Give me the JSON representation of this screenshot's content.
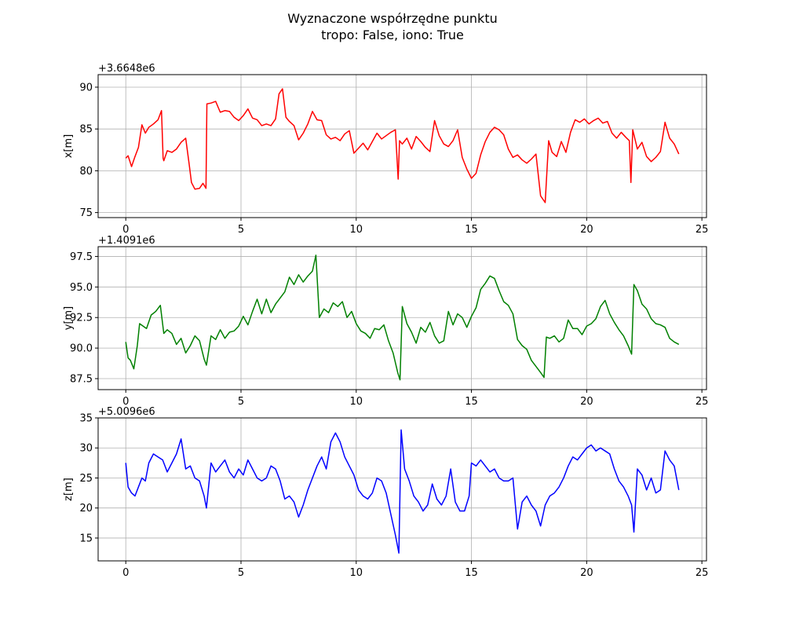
{
  "title": [
    "Wyznaczone współrzędne punktu",
    "tropo: False, iono: True"
  ],
  "chart_data": [
    {
      "type": "line",
      "offset_label": "+3.6648e6",
      "ylabel": "x[m]",
      "xlabel": "",
      "xlim": [
        -1.2,
        25.2
      ],
      "ylim": [
        74.4,
        91.5
      ],
      "xticks": [
        0,
        5,
        10,
        15,
        20,
        25
      ],
      "yticks": [
        75,
        80,
        85,
        90
      ],
      "grid": true,
      "series": [
        {
          "color": "#ff0000",
          "x": [
            0,
            0.1,
            0.25,
            0.4,
            0.55,
            0.7,
            0.85,
            1.0,
            1.2,
            1.4,
            1.55,
            1.62,
            1.65,
            1.8,
            2.0,
            2.2,
            2.4,
            2.6,
            2.75,
            2.85,
            3.0,
            3.2,
            3.35,
            3.48,
            3.52,
            3.7,
            3.9,
            4.1,
            4.3,
            4.5,
            4.7,
            4.9,
            5.1,
            5.3,
            5.5,
            5.7,
            5.9,
            6.1,
            6.3,
            6.5,
            6.65,
            6.8,
            6.95,
            7.1,
            7.3,
            7.5,
            7.7,
            7.9,
            8.1,
            8.3,
            8.5,
            8.7,
            8.9,
            9.1,
            9.3,
            9.5,
            9.7,
            9.9,
            10.1,
            10.3,
            10.5,
            10.7,
            10.9,
            11.1,
            11.3,
            11.5,
            11.7,
            11.82,
            11.88,
            12.0,
            12.2,
            12.4,
            12.6,
            12.8,
            13.0,
            13.2,
            13.4,
            13.6,
            13.8,
            14.0,
            14.2,
            14.4,
            14.6,
            14.8,
            15.0,
            15.2,
            15.4,
            15.6,
            15.8,
            16.0,
            16.2,
            16.4,
            16.6,
            16.8,
            17.0,
            17.2,
            17.4,
            17.6,
            17.8,
            18.0,
            18.2,
            18.35,
            18.5,
            18.7,
            18.9,
            19.1,
            19.3,
            19.5,
            19.7,
            19.9,
            20.1,
            20.3,
            20.5,
            20.7,
            20.9,
            21.1,
            21.3,
            21.5,
            21.7,
            21.85,
            21.92,
            22.0,
            22.2,
            22.4,
            22.6,
            22.8,
            23.0,
            23.2,
            23.4,
            23.6,
            23.8,
            24.0
          ],
          "y": [
            81.5,
            81.8,
            80.5,
            81.7,
            82.8,
            85.5,
            84.5,
            85.2,
            85.6,
            86.1,
            87.2,
            81.5,
            81.2,
            82.4,
            82.2,
            82.6,
            83.4,
            83.9,
            80.8,
            78.6,
            77.8,
            77.9,
            78.5,
            77.9,
            88.0,
            88.1,
            88.3,
            87.0,
            87.2,
            87.1,
            86.4,
            86.0,
            86.6,
            87.4,
            86.3,
            86.1,
            85.4,
            85.6,
            85.4,
            86.2,
            89.2,
            89.8,
            86.4,
            85.9,
            85.4,
            83.7,
            84.5,
            85.6,
            87.1,
            86.1,
            86.0,
            84.3,
            83.8,
            84.0,
            83.6,
            84.4,
            84.8,
            82.1,
            82.7,
            83.3,
            82.5,
            83.5,
            84.5,
            83.8,
            84.2,
            84.6,
            84.9,
            79.0,
            83.6,
            83.2,
            83.9,
            82.6,
            84.1,
            83.5,
            82.8,
            82.3,
            86.0,
            84.2,
            83.2,
            82.9,
            83.6,
            84.9,
            81.6,
            80.2,
            79.1,
            79.7,
            81.9,
            83.5,
            84.6,
            85.2,
            84.9,
            84.3,
            82.6,
            81.6,
            81.9,
            81.3,
            80.9,
            81.4,
            82.0,
            77.0,
            76.2,
            83.6,
            82.2,
            81.7,
            83.5,
            82.2,
            84.6,
            86.1,
            85.8,
            86.2,
            85.6,
            86.0,
            86.3,
            85.7,
            85.9,
            84.5,
            83.9,
            84.6,
            84.0,
            83.6,
            78.6,
            84.9,
            82.6,
            83.4,
            81.7,
            81.1,
            81.6,
            82.3,
            85.8,
            83.9,
            83.2,
            82.0
          ]
        }
      ]
    },
    {
      "type": "line",
      "offset_label": "+1.4091e6",
      "ylabel": "y[m]",
      "xlabel": "",
      "xlim": [
        -1.2,
        25.2
      ],
      "ylim": [
        86.6,
        98.3
      ],
      "xticks": [
        0,
        5,
        10,
        15,
        20,
        25
      ],
      "yticks": [
        87.5,
        90.0,
        92.5,
        95.0,
        97.5
      ],
      "grid": true,
      "series": [
        {
          "color": "#008000",
          "x": [
            0,
            0.1,
            0.2,
            0.35,
            0.5,
            0.6,
            0.75,
            0.9,
            1.1,
            1.3,
            1.5,
            1.65,
            1.8,
            2.0,
            2.2,
            2.4,
            2.6,
            2.8,
            3.0,
            3.2,
            3.4,
            3.5,
            3.7,
            3.9,
            4.1,
            4.3,
            4.5,
            4.7,
            4.9,
            5.1,
            5.3,
            5.5,
            5.7,
            5.9,
            6.1,
            6.3,
            6.5,
            6.7,
            6.9,
            7.1,
            7.3,
            7.5,
            7.7,
            7.9,
            8.1,
            8.25,
            8.4,
            8.6,
            8.8,
            9.0,
            9.2,
            9.4,
            9.6,
            9.8,
            10.0,
            10.2,
            10.4,
            10.6,
            10.8,
            11.0,
            11.2,
            11.4,
            11.6,
            11.8,
            11.9,
            12.0,
            12.2,
            12.4,
            12.6,
            12.8,
            13.0,
            13.2,
            13.4,
            13.6,
            13.8,
            14.0,
            14.2,
            14.4,
            14.6,
            14.8,
            15.0,
            15.2,
            15.4,
            15.6,
            15.8,
            16.0,
            16.2,
            16.4,
            16.6,
            16.8,
            17.0,
            17.2,
            17.4,
            17.6,
            17.8,
            18.0,
            18.15,
            18.25,
            18.4,
            18.6,
            18.8,
            19.0,
            19.2,
            19.4,
            19.6,
            19.8,
            20.0,
            20.2,
            20.4,
            20.6,
            20.8,
            21.0,
            21.2,
            21.4,
            21.6,
            21.8,
            21.95,
            22.05,
            22.2,
            22.4,
            22.6,
            22.8,
            23.0,
            23.2,
            23.4,
            23.6,
            23.8,
            24.0
          ],
          "y": [
            90.5,
            89.2,
            89.0,
            88.3,
            90.2,
            92.0,
            91.8,
            91.6,
            92.7,
            93.0,
            93.5,
            91.2,
            91.5,
            91.2,
            90.3,
            90.8,
            89.6,
            90.2,
            91.0,
            90.6,
            89.1,
            88.6,
            91.0,
            90.7,
            91.5,
            90.8,
            91.3,
            91.4,
            91.8,
            92.6,
            91.9,
            93.0,
            94.0,
            92.8,
            94.0,
            92.9,
            93.6,
            94.1,
            94.6,
            95.8,
            95.2,
            96.0,
            95.4,
            95.9,
            96.3,
            97.6,
            92.5,
            93.2,
            92.9,
            93.7,
            93.4,
            93.8,
            92.5,
            93.0,
            92.0,
            91.4,
            91.2,
            90.8,
            91.6,
            91.5,
            91.9,
            90.6,
            89.6,
            88.0,
            87.4,
            93.4,
            92.0,
            91.3,
            90.4,
            91.7,
            91.3,
            92.1,
            91.0,
            90.4,
            90.6,
            93.0,
            91.9,
            92.8,
            92.5,
            91.7,
            92.6,
            93.3,
            94.8,
            95.3,
            95.9,
            95.7,
            94.7,
            93.8,
            93.5,
            92.8,
            90.7,
            90.2,
            89.9,
            89.0,
            88.5,
            88.0,
            87.6,
            90.9,
            90.8,
            91.0,
            90.5,
            90.8,
            92.3,
            91.6,
            91.6,
            91.1,
            91.8,
            92.0,
            92.4,
            93.4,
            93.9,
            92.8,
            92.1,
            91.5,
            91.0,
            90.2,
            89.5,
            95.2,
            94.7,
            93.6,
            93.2,
            92.4,
            92.0,
            91.9,
            91.7,
            90.8,
            90.5,
            90.3
          ]
        }
      ]
    },
    {
      "type": "line",
      "offset_label": "+5.0096e6",
      "ylabel": "z[m]",
      "xlabel": "",
      "xlim": [
        -1.2,
        25.2
      ],
      "ylim": [
        11.2,
        35.0
      ],
      "xticks": [
        0,
        5,
        10,
        15,
        20,
        25
      ],
      "yticks": [
        15,
        20,
        25,
        30,
        35
      ],
      "grid": true,
      "series": [
        {
          "color": "#0000ff",
          "x": [
            0,
            0.1,
            0.25,
            0.4,
            0.55,
            0.7,
            0.85,
            1.0,
            1.2,
            1.4,
            1.6,
            1.8,
            2.0,
            2.2,
            2.4,
            2.5,
            2.6,
            2.8,
            3.0,
            3.2,
            3.4,
            3.5,
            3.7,
            3.9,
            4.1,
            4.3,
            4.5,
            4.7,
            4.9,
            5.1,
            5.3,
            5.5,
            5.7,
            5.9,
            6.1,
            6.3,
            6.5,
            6.7,
            6.9,
            7.1,
            7.3,
            7.5,
            7.7,
            7.9,
            8.1,
            8.3,
            8.5,
            8.7,
            8.9,
            9.1,
            9.3,
            9.5,
            9.7,
            9.9,
            10.1,
            10.3,
            10.5,
            10.7,
            10.9,
            11.1,
            11.3,
            11.5,
            11.7,
            11.85,
            11.95,
            12.1,
            12.3,
            12.5,
            12.7,
            12.9,
            13.1,
            13.3,
            13.5,
            13.7,
            13.9,
            14.1,
            14.3,
            14.5,
            14.7,
            14.9,
            15.0,
            15.2,
            15.4,
            15.6,
            15.8,
            16.0,
            16.2,
            16.4,
            16.6,
            16.8,
            17.0,
            17.2,
            17.4,
            17.6,
            17.8,
            18.0,
            18.2,
            18.4,
            18.6,
            18.8,
            19.0,
            19.2,
            19.4,
            19.6,
            19.8,
            20.0,
            20.2,
            20.4,
            20.6,
            20.8,
            21.0,
            21.2,
            21.4,
            21.6,
            21.8,
            21.95,
            22.05,
            22.2,
            22.4,
            22.6,
            22.8,
            23.0,
            23.2,
            23.4,
            23.6,
            23.8,
            24.0
          ],
          "y": [
            27.5,
            23.5,
            22.5,
            22.0,
            23.5,
            25.0,
            24.5,
            27.5,
            29.0,
            28.5,
            28.0,
            26.0,
            27.5,
            29.0,
            31.5,
            29.0,
            26.5,
            27.0,
            25.0,
            24.5,
            22.0,
            20.0,
            27.5,
            26.0,
            27.0,
            28.0,
            26.0,
            25.0,
            26.5,
            25.5,
            28.0,
            26.5,
            25.0,
            24.5,
            25.0,
            27.0,
            26.5,
            24.5,
            21.5,
            22.0,
            21.0,
            18.5,
            20.5,
            23.0,
            25.0,
            27.0,
            28.5,
            26.5,
            31.0,
            32.5,
            31.0,
            28.5,
            27.0,
            25.5,
            23.0,
            22.0,
            21.5,
            22.5,
            25.0,
            24.5,
            22.5,
            19.0,
            15.5,
            12.5,
            33.0,
            26.5,
            24.5,
            22.0,
            21.0,
            19.5,
            20.5,
            24.0,
            21.5,
            20.5,
            22.0,
            26.5,
            21.0,
            19.5,
            19.5,
            22.0,
            27.5,
            27.0,
            28.0,
            27.0,
            26.0,
            26.5,
            25.0,
            24.5,
            24.5,
            25.0,
            16.5,
            21.0,
            22.0,
            20.5,
            19.5,
            17.0,
            20.5,
            22.0,
            22.5,
            23.5,
            25.0,
            27.0,
            28.5,
            28.0,
            29.0,
            30.0,
            30.5,
            29.5,
            30.0,
            29.5,
            29.0,
            26.5,
            24.5,
            23.5,
            22.0,
            20.5,
            16.0,
            26.5,
            25.5,
            23.0,
            25.0,
            22.5,
            23.0,
            29.5,
            28.0,
            27.0,
            23.0
          ]
        }
      ]
    }
  ]
}
